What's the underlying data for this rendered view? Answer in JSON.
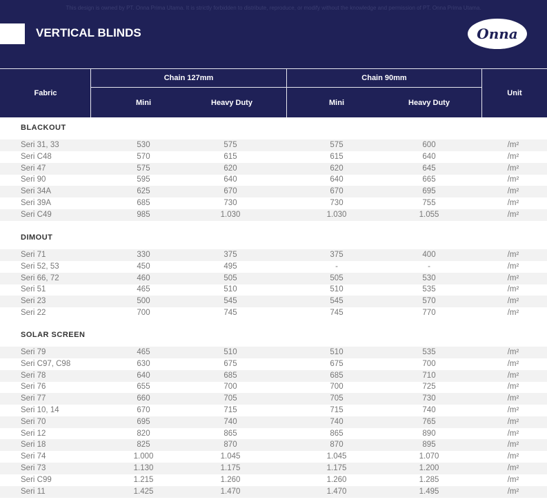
{
  "notice": "This design is owned by PT. Onna Prima Utama. It is strictly forbidden to distribute, reproduce, or modify without the knowledge and permission of PT. Onna Prima Utama.",
  "title": "VERTICAL BLINDS",
  "logo": "Onna",
  "header": {
    "fabric": "Fabric",
    "chain127": "Chain 127mm",
    "chain90": "Chain 90mm",
    "mini": "Mini",
    "heavy": "Heavy Duty",
    "unit": "Unit"
  },
  "sections": [
    {
      "name": "BLACKOUT",
      "rows": [
        [
          "Seri 31, 33",
          "530",
          "575",
          "575",
          "600",
          "/m²"
        ],
        [
          "Seri C48",
          "570",
          "615",
          "615",
          "640",
          "/m²"
        ],
        [
          "Seri 47",
          "575",
          "620",
          "620",
          "645",
          "/m²"
        ],
        [
          "Seri 90",
          "595",
          "640",
          "640",
          "665",
          "/m²"
        ],
        [
          "Seri 34A",
          "625",
          "670",
          "670",
          "695",
          "/m²"
        ],
        [
          "Seri 39A",
          "685",
          "730",
          "730",
          "755",
          "/m²"
        ],
        [
          "Seri C49",
          "985",
          "1.030",
          "1.030",
          "1.055",
          "/m²"
        ]
      ]
    },
    {
      "name": "DIMOUT",
      "rows": [
        [
          "Seri 71",
          "330",
          "375",
          "375",
          "400",
          "/m²"
        ],
        [
          "Seri 52, 53",
          "450",
          "495",
          "-",
          "-",
          "/m²"
        ],
        [
          "Seri 66, 72",
          "460",
          "505",
          "505",
          "530",
          "/m²"
        ],
        [
          "Seri 51",
          "465",
          "510",
          "510",
          "535",
          "/m²"
        ],
        [
          "Seri 23",
          "500",
          "545",
          "545",
          "570",
          "/m²"
        ],
        [
          "Seri 22",
          "700",
          "745",
          "745",
          "770",
          "/m²"
        ]
      ]
    },
    {
      "name": "SOLAR SCREEN",
      "rows": [
        [
          "Seri 79",
          "465",
          "510",
          "510",
          "535",
          "/m²"
        ],
        [
          "Seri C97, C98",
          "630",
          "675",
          "675",
          "700",
          "/m²"
        ],
        [
          "Seri 78",
          "640",
          "685",
          "685",
          "710",
          "/m²"
        ],
        [
          "Seri 76",
          "655",
          "700",
          "700",
          "725",
          "/m²"
        ],
        [
          "Seri 77",
          "660",
          "705",
          "705",
          "730",
          "/m²"
        ],
        [
          "Seri 10, 14",
          "670",
          "715",
          "715",
          "740",
          "/m²"
        ],
        [
          "Seri 70",
          "695",
          "740",
          "740",
          "765",
          "/m²"
        ],
        [
          "Seri 12",
          "820",
          "865",
          "865",
          "890",
          "/m²"
        ],
        [
          "Seri 18",
          "825",
          "870",
          "870",
          "895",
          "/m²"
        ],
        [
          "Seri 74",
          "1.000",
          "1.045",
          "1.045",
          "1.070",
          "/m²"
        ],
        [
          "Seri 73",
          "1.130",
          "1.175",
          "1.175",
          "1.200",
          "/m²"
        ],
        [
          "Seri C99",
          "1.215",
          "1.260",
          "1.260",
          "1.285",
          "/m²"
        ],
        [
          "Seri 11",
          "1.425",
          "1.470",
          "1.470",
          "1.495",
          "/m²"
        ]
      ]
    }
  ]
}
